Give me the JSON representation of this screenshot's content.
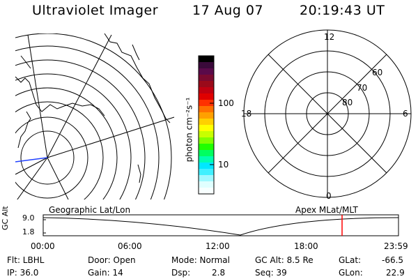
{
  "title": {
    "instrument": "Ultraviolet Imager",
    "date": "17 Aug 07",
    "time": "20:19:43 UT"
  },
  "colorbar": {
    "unit_label": "photon cm⁻²s⁻¹",
    "tick_labels": [
      "100",
      "10"
    ],
    "colors": [
      "#000000",
      "#3a0a3a",
      "#5a0a4a",
      "#7a0a30",
      "#9a0a1a",
      "#c00010",
      "#e00000",
      "#ff3000",
      "#ff7000",
      "#ffa000",
      "#ffd000",
      "#ffff00",
      "#c8ff00",
      "#80ff00",
      "#20ff00",
      "#00ff60",
      "#00ffb0",
      "#00e8ff",
      "#40f0ff",
      "#a0f8ff",
      "#e0ffff",
      "#f8ffff"
    ]
  },
  "left_map": {
    "label": "Geographic Lat/Lon"
  },
  "right_map": {
    "label": "Apex MLat/MLT",
    "mlt_labels": {
      "top": "12",
      "bottom": "0",
      "left": "18",
      "right": "6"
    },
    "lat_labels": [
      "60",
      "70",
      "80"
    ]
  },
  "altitude_strip": {
    "axis_label": "GC Alt",
    "y_ticks": [
      "9.0",
      "1.8"
    ],
    "x_ticks": [
      "00:00",
      "06:00",
      "12:00",
      "18:00",
      "23:59"
    ],
    "marker_color": "#ff0000"
  },
  "status": {
    "flt": "Flt: LBHL",
    "ip": "IP: 36.0",
    "door": "Door: Open",
    "gain": "Gain: 14",
    "mode": "Mode: Normal",
    "dsp_label": "Dsp:",
    "dsp_value": "2.8",
    "gc_alt": "GC Alt: 8.5 Re",
    "seq": "Seq: 39",
    "glat_label": "GLat:",
    "glat_value": "-66.5",
    "glon_label": "GLon:",
    "glon_value": "22.9"
  }
}
